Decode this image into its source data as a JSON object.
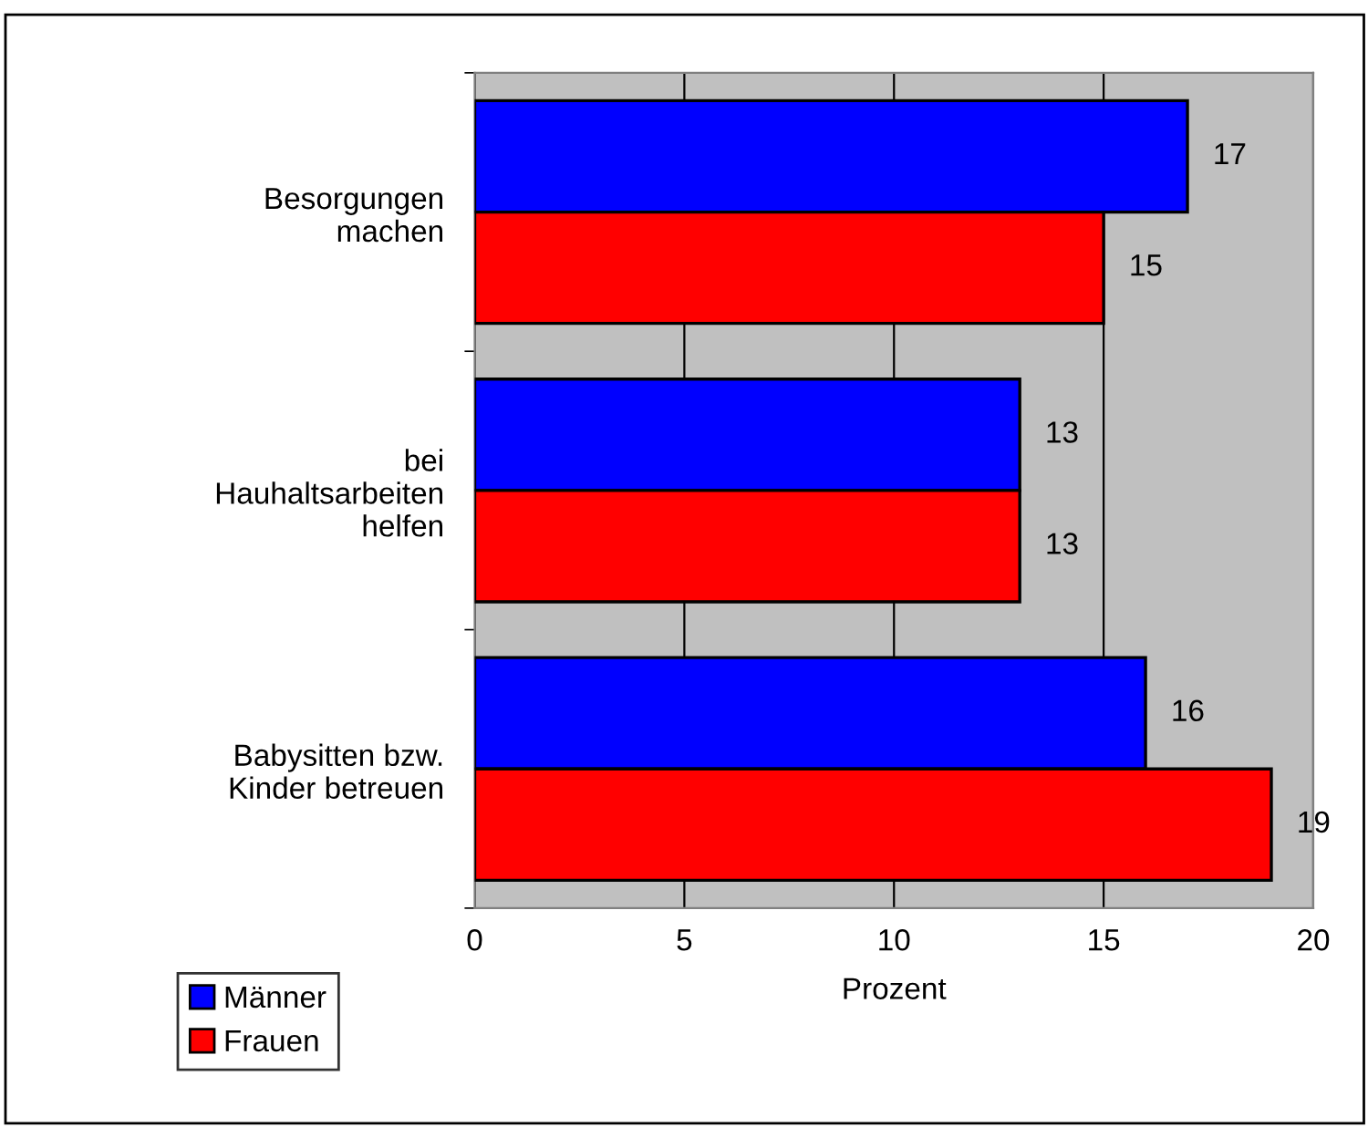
{
  "chart_data": {
    "type": "bar",
    "orientation": "horizontal",
    "xlabel": "Prozent",
    "categories": [
      "Besorgungen\nmachen",
      "bei\nHauhaltsarbeiten\nhelfen",
      "Babysitten bzw.\nKinder betreuen"
    ],
    "series": [
      {
        "name": "Männer",
        "color": "#0000ff",
        "values": [
          17,
          13,
          16
        ]
      },
      {
        "name": "Frauen",
        "color": "#ff0000",
        "values": [
          15,
          13,
          19
        ]
      }
    ],
    "xlim": [
      0,
      20
    ],
    "xticks": [
      0,
      5,
      10,
      15,
      20
    ],
    "grid": "x",
    "legend": "bottom left",
    "data_labels": true
  }
}
